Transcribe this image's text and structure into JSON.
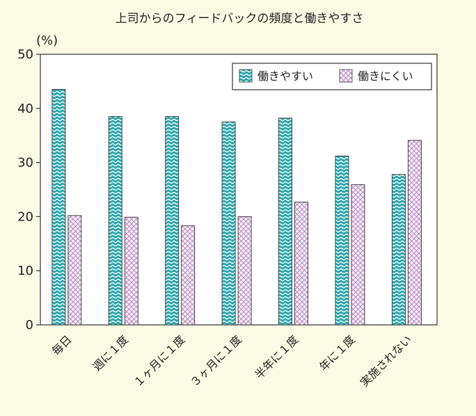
{
  "chart_data": {
    "type": "bar",
    "title": "上司からのフィードバックの頻度と働きやすさ",
    "unit_label": "(%)",
    "ylim": [
      0,
      50
    ],
    "yticks": [
      "0",
      "10",
      "20",
      "30",
      "40",
      "50"
    ],
    "categories": [
      "毎日",
      "週に１度",
      "１ヶ月に１度",
      "３ヶ月に１度",
      "半年に１度",
      "年に１度",
      "実施されない"
    ],
    "series": [
      {
        "name": "働きやすい",
        "values": [
          43.5,
          38.5,
          38.5,
          37.5,
          38.2,
          31.2,
          27.8
        ],
        "color": "#2aa6ad",
        "pattern": "wave"
      },
      {
        "name": "働きにくい",
        "values": [
          20.2,
          19.9,
          18.3,
          20.0,
          22.7,
          25.9,
          34.1
        ],
        "color": "#e8d2ec",
        "pattern": "crosshatch"
      }
    ],
    "legend_position": "top-right",
    "grid": false
  }
}
